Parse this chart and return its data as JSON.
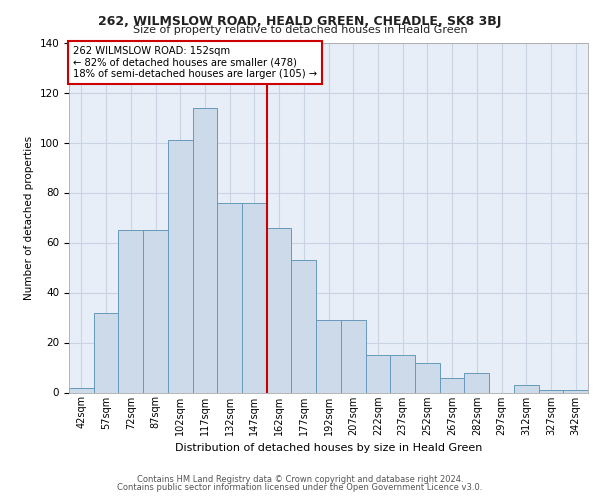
{
  "title": "262, WILMSLOW ROAD, HEALD GREEN, CHEADLE, SK8 3BJ",
  "subtitle": "Size of property relative to detached houses in Heald Green",
  "xlabel": "Distribution of detached houses by size in Heald Green",
  "ylabel": "Number of detached properties",
  "bin_labels": [
    "42sqm",
    "57sqm",
    "72sqm",
    "87sqm",
    "102sqm",
    "117sqm",
    "132sqm",
    "147sqm",
    "162sqm",
    "177sqm",
    "192sqm",
    "207sqm",
    "222sqm",
    "237sqm",
    "252sqm",
    "267sqm",
    "282sqm",
    "297sqm",
    "312sqm",
    "327sqm",
    "342sqm"
  ],
  "bar_heights": [
    2,
    32,
    65,
    65,
    101,
    114,
    76,
    76,
    66,
    53,
    29,
    29,
    15,
    15,
    12,
    6,
    8,
    0,
    3,
    1,
    1
  ],
  "bar_color": "#ccdaea",
  "bar_edge_color": "#6699bb",
  "vline_x": 7.5,
  "vline_color": "#cc0000",
  "annotation_text": "262 WILMSLOW ROAD: 152sqm\n← 82% of detached houses are smaller (478)\n18% of semi-detached houses are larger (105) →",
  "annotation_box_color": "#ffffff",
  "annotation_box_edge": "#cc0000",
  "ylim": [
    0,
    140
  ],
  "yticks": [
    0,
    20,
    40,
    60,
    80,
    100,
    120,
    140
  ],
  "grid_color": "#c8d4e4",
  "background_color": "#e8eef8",
  "footer_line1": "Contains HM Land Registry data © Crown copyright and database right 2024.",
  "footer_line2": "Contains public sector information licensed under the Open Government Licence v3.0."
}
